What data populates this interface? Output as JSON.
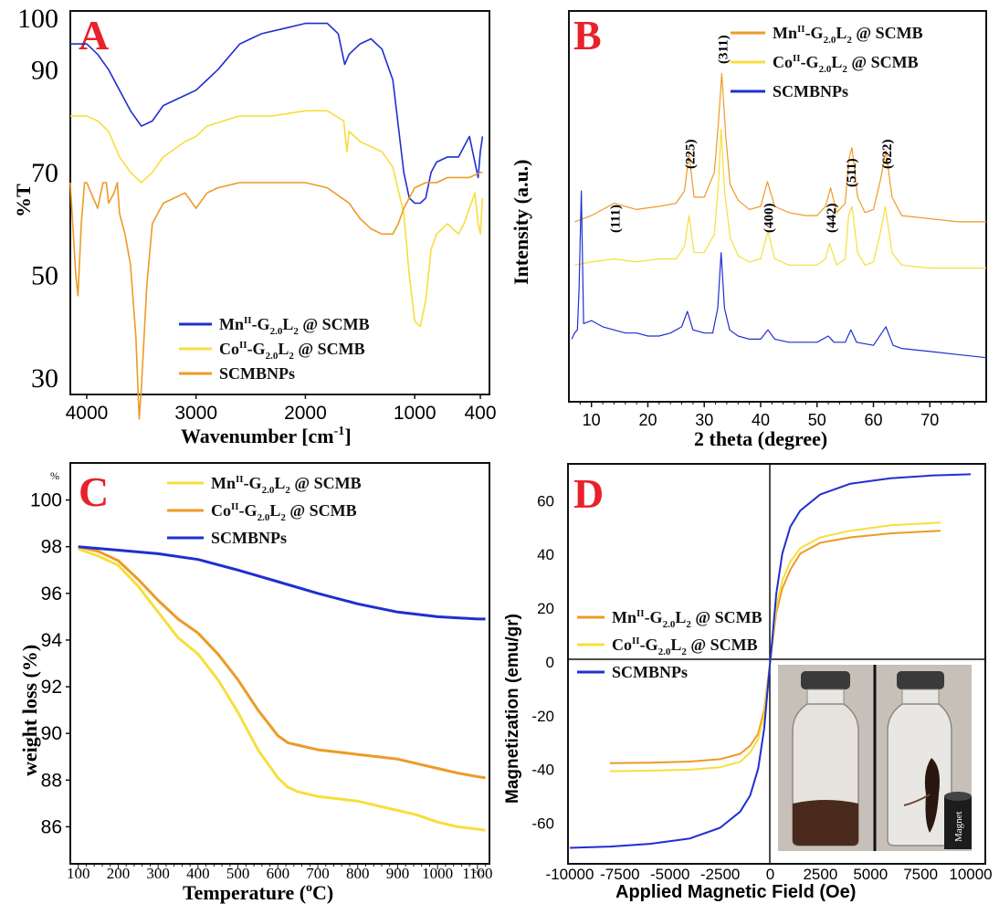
{
  "colors": {
    "blue": "#1f2fd0",
    "yellow": "#f7de3c",
    "orange": "#ee9a26",
    "frame": "#111111",
    "letter": "#e8212a"
  },
  "panels": {
    "A": {
      "letter": "A",
      "xlabel": "Wavenumber [cm-1]",
      "xlabel_main": "Wavenumber [cm",
      "xlabel_sup": "-1",
      "xlabel_end": "]",
      "ylabel": "%T",
      "xticks": [
        "4000",
        "3000",
        "2000",
        "1000",
        "400"
      ],
      "yticks": [
        "100",
        "90",
        "70",
        "50",
        "30"
      ],
      "legend": [
        {
          "pre": "Mn",
          "sup": "II",
          "mid": "-G",
          "sub": "2.0",
          "L": "L",
          "sub2": "2",
          "post": " @ SCMB",
          "color": "blue"
        },
        {
          "pre": "Co",
          "sup": "II",
          "mid": "-G",
          "sub": "2.0",
          "L": "L",
          "sub2": "2",
          "post": " @ SCMB",
          "color": "yellow"
        },
        {
          "pre": "SCMBNPs",
          "sup": "",
          "mid": "",
          "sub": "",
          "L": "",
          "sub2": "",
          "post": "",
          "color": "orange"
        }
      ]
    },
    "B": {
      "letter": "B",
      "xlabel": "2 theta (degree)",
      "ylabel": "Intensity (a.u.)",
      "xticks": [
        "10",
        "20",
        "30",
        "40",
        "50",
        "60",
        "70"
      ],
      "peaks": [
        "(111)",
        "(225)",
        "(311)",
        "(400)",
        "(442)",
        "(511)",
        "(622)"
      ],
      "legend": [
        {
          "pre": "Mn",
          "sup": "II",
          "mid": "-G",
          "sub": "2.0",
          "L": "L",
          "sub2": "2",
          "post": " @ SCMB",
          "color": "orange"
        },
        {
          "pre": "Co",
          "sup": "II",
          "mid": "-G",
          "sub": "2.0",
          "L": "L",
          "sub2": "2",
          "post": " @ SCMB",
          "color": "yellow"
        },
        {
          "pre": "SCMBNPs",
          "sup": "",
          "mid": "",
          "sub": "",
          "L": "",
          "sub2": "",
          "post": "",
          "color": "blue"
        }
      ]
    },
    "C": {
      "letter": "C",
      "xlabel": "Temperature (oC)",
      "xlabel_main": "Temperature (",
      "xlabel_sup": "o",
      "xlabel_end": "C)",
      "ylabel": "weight loss (%)",
      "yunit": "%",
      "xunit": "°C",
      "xticks": [
        "100",
        "200",
        "300",
        "400",
        "500",
        "600",
        "700",
        "800",
        "900",
        "1000",
        "1100"
      ],
      "yticks": [
        "100",
        "98",
        "96",
        "94",
        "92",
        "90",
        "88",
        "86"
      ],
      "legend": [
        {
          "pre": "Mn",
          "sup": "II",
          "mid": "-G",
          "sub": "2.0",
          "L": "L",
          "sub2": "2",
          "post": " @ SCMB",
          "color": "yellow"
        },
        {
          "pre": "Co",
          "sup": "II",
          "mid": "-G",
          "sub": "2.0",
          "L": "L",
          "sub2": "2",
          "post": " @ SCMB",
          "color": "orange"
        },
        {
          "pre": "SCMBNPs",
          "sup": "",
          "mid": "",
          "sub": "",
          "L": "",
          "sub2": "",
          "post": "",
          "color": "blue"
        }
      ]
    },
    "D": {
      "letter": "D",
      "xlabel": "Applied Magnetic Field (Oe)",
      "ylabel": "Magnetization (emu/gr)",
      "xticks": [
        "-10000",
        "-7500",
        "-5000",
        "-2500",
        "0",
        "2500",
        "5000",
        "7500",
        "10000"
      ],
      "yticks": [
        "60",
        "40",
        "20",
        "0",
        "-20",
        "-40",
        "-60"
      ],
      "inset_label": "Magnet",
      "legend": [
        {
          "pre": "Mn",
          "sup": "II",
          "mid": "-G",
          "sub": "2.0",
          "L": "L",
          "sub2": "2",
          "post": " @ SCMB",
          "color": "orange"
        },
        {
          "pre": "Co",
          "sup": "II",
          "mid": "-G",
          "sub": "2.0",
          "L": "L",
          "sub2": "2",
          "post": " @ SCMB",
          "color": "yellow"
        },
        {
          "pre": "SCMBNPs",
          "sup": "",
          "mid": "",
          "sub": "",
          "L": "",
          "sub2": "",
          "post": "",
          "color": "blue"
        }
      ]
    }
  },
  "chart_data": [
    {
      "type": "line",
      "panel": "A",
      "xlabel": "Wavenumber [cm-1]",
      "ylabel": "%T",
      "xlim": [
        4150,
        300
      ],
      "ylim": [
        20,
        100
      ],
      "series": [
        {
          "name": "Mn-G2.0L2 @ SCMB",
          "color": "blue",
          "x": [
            4150,
            4000,
            3900,
            3800,
            3700,
            3600,
            3500,
            3400,
            3300,
            3100,
            3000,
            2900,
            2800,
            2600,
            2400,
            2200,
            2000,
            1800,
            1700,
            1640,
            1600,
            1500,
            1400,
            1300,
            1200,
            1100,
            1050,
            1000,
            950,
            900,
            850,
            800,
            700,
            600,
            550,
            500,
            450,
            420,
            400,
            380
          ],
          "y": [
            95,
            95,
            93,
            90,
            86,
            82,
            79,
            80,
            83,
            85,
            86,
            88,
            90,
            95,
            97,
            98,
            99,
            99,
            97,
            91,
            93,
            95,
            96,
            94,
            88,
            70,
            65,
            64,
            64,
            65,
            70,
            72,
            73,
            73,
            75,
            77,
            72,
            69,
            74,
            77
          ]
        },
        {
          "name": "Co-G2.0L2 @ SCMB",
          "color": "yellow",
          "x": [
            4150,
            4000,
            3900,
            3800,
            3700,
            3600,
            3500,
            3400,
            3300,
            3100,
            3000,
            2900,
            2600,
            2300,
            2000,
            1800,
            1650,
            1620,
            1600,
            1500,
            1400,
            1300,
            1200,
            1100,
            1050,
            1000,
            950,
            900,
            850,
            800,
            700,
            600,
            550,
            500,
            450,
            420,
            400,
            380
          ],
          "y": [
            81,
            81,
            80,
            78,
            73,
            70,
            68,
            70,
            73,
            76,
            77,
            79,
            81,
            81,
            82,
            82,
            80,
            74,
            78,
            76,
            75,
            74,
            71,
            62,
            50,
            41,
            40,
            45,
            55,
            58,
            60,
            58,
            60,
            63,
            66,
            60,
            58,
            65
          ]
        },
        {
          "name": "SCMBNPs",
          "color": "orange",
          "x": [
            4150,
            4100,
            4080,
            4050,
            4020,
            4000,
            3900,
            3850,
            3820,
            3800,
            3750,
            3720,
            3700,
            3650,
            3600,
            3550,
            3520,
            3500,
            3450,
            3400,
            3300,
            3200,
            3100,
            3000,
            2900,
            2800,
            2600,
            2400,
            2200,
            2000,
            1800,
            1600,
            1500,
            1400,
            1300,
            1200,
            1150,
            1100,
            1000,
            900,
            800,
            700,
            600,
            500,
            400,
            380
          ],
          "y": [
            68,
            50,
            46,
            60,
            68,
            68,
            63,
            68,
            68,
            64,
            66,
            68,
            62,
            58,
            52,
            38,
            22,
            28,
            48,
            60,
            64,
            65,
            66,
            63,
            66,
            67,
            68,
            68,
            68,
            68,
            67,
            64,
            61,
            59,
            58,
            58,
            60,
            63,
            67,
            68,
            68,
            69,
            69,
            69,
            70,
            70
          ]
        }
      ]
    },
    {
      "type": "line",
      "panel": "B",
      "xlabel": "2 theta (degree)",
      "ylabel": "Intensity (a.u.)",
      "xlim": [
        6,
        80
      ],
      "ylim": [
        0,
        110
      ],
      "series": [
        {
          "name": "Mn-G2.0L2 @ SCMB",
          "color": "orange",
          "x": [
            7,
            10,
            14,
            18,
            22,
            25,
            26.5,
            27.3,
            28.2,
            30,
            31.8,
            32.5,
            33.1,
            33.8,
            34.6,
            36,
            38,
            40,
            41.2,
            42.5,
            45,
            48,
            50,
            51.5,
            52.4,
            53.5,
            55,
            55.6,
            56.2,
            57.2,
            58.5,
            60,
            61.3,
            62.2,
            63.3,
            65,
            70,
            75,
            80
          ],
          "y": [
            50,
            52,
            56,
            54,
            55,
            56,
            60,
            72,
            58,
            58,
            66,
            82,
            98,
            78,
            62,
            57,
            54,
            55,
            63,
            55,
            53,
            52,
            52,
            55,
            61,
            53,
            56,
            70,
            74,
            58,
            53,
            54,
            64,
            73,
            58,
            52,
            51,
            50,
            50
          ]
        },
        {
          "name": "Co-G2.0L2 @ SCMB",
          "color": "yellow",
          "x": [
            7,
            10,
            14,
            18,
            22,
            25,
            26.5,
            27.3,
            28.2,
            30,
            31.8,
            32.5,
            33,
            33.6,
            34.6,
            36,
            38,
            40,
            41.3,
            42.5,
            45,
            48,
            50,
            51.5,
            52.2,
            53.5,
            55,
            55.6,
            56.2,
            57.2,
            58.5,
            60,
            61.3,
            62.1,
            63.3,
            65,
            70,
            75,
            80
          ],
          "y": [
            36,
            37,
            38,
            37,
            38,
            38,
            42,
            52,
            40,
            40,
            46,
            62,
            80,
            60,
            45,
            39,
            37,
            38,
            47,
            38,
            36,
            36,
            36,
            38,
            43,
            36,
            38,
            52,
            55,
            40,
            36,
            37,
            47,
            55,
            40,
            36,
            35,
            35,
            35
          ]
        },
        {
          "name": "SCMBNPs",
          "color": "blue",
          "x": [
            6.5,
            7,
            7.5,
            7.8,
            8.2,
            8.6,
            10,
            12,
            14,
            16,
            18,
            20,
            22,
            24,
            26,
            27,
            28,
            30,
            31.5,
            32.4,
            33,
            33.6,
            34.5,
            36,
            38,
            40,
            41.3,
            42.5,
            45,
            48,
            50,
            52,
            53,
            55,
            56,
            57,
            60,
            62.2,
            63.5,
            65,
            70,
            75,
            80
          ],
          "y": [
            12,
            14,
            15,
            28,
            60,
            17,
            18,
            16,
            15,
            14,
            14,
            13,
            13,
            14,
            16,
            21,
            15,
            14,
            14,
            22,
            40,
            22,
            15,
            13,
            12,
            12,
            15,
            12,
            11,
            11,
            11,
            13,
            11,
            11,
            15,
            11,
            10,
            16,
            10,
            9,
            8,
            7,
            6
          ]
        }
      ]
    },
    {
      "type": "line",
      "panel": "C",
      "xlabel": "Temperature (oC)",
      "ylabel": "weight loss (%)",
      "xlim": [
        80,
        1130
      ],
      "ylim": [
        85,
        101
      ],
      "series": [
        {
          "name": "Mn-G2.0L2 @ SCMB",
          "color": "yellow",
          "x": [
            100,
            150,
            200,
            250,
            300,
            350,
            400,
            450,
            500,
            550,
            600,
            625,
            650,
            700,
            750,
            800,
            850,
            900,
            950,
            1000,
            1050,
            1100,
            1120
          ],
          "y": [
            97.9,
            97.6,
            97.2,
            96.3,
            95.2,
            94.1,
            93.4,
            92.3,
            90.9,
            89.3,
            88.1,
            87.7,
            87.5,
            87.3,
            87.2,
            87.1,
            86.9,
            86.7,
            86.5,
            86.2,
            86.0,
            85.9,
            85.85
          ]
        },
        {
          "name": "Co-G2.0L2 @ SCMB",
          "color": "orange",
          "x": [
            100,
            150,
            200,
            250,
            300,
            350,
            400,
            450,
            500,
            550,
            600,
            625,
            650,
            700,
            750,
            800,
            850,
            900,
            950,
            1000,
            1050,
            1100,
            1120
          ],
          "y": [
            98.0,
            97.8,
            97.4,
            96.6,
            95.7,
            94.9,
            94.3,
            93.4,
            92.3,
            91.0,
            89.9,
            89.6,
            89.5,
            89.3,
            89.2,
            89.1,
            89.0,
            88.9,
            88.7,
            88.5,
            88.3,
            88.15,
            88.1
          ]
        },
        {
          "name": "SCMBNPs",
          "color": "blue",
          "x": [
            100,
            200,
            300,
            400,
            500,
            600,
            700,
            800,
            900,
            1000,
            1100,
            1120
          ],
          "y": [
            98.0,
            97.85,
            97.7,
            97.45,
            97.0,
            96.5,
            96.0,
            95.55,
            95.2,
            95.0,
            94.9,
            94.9
          ]
        }
      ]
    },
    {
      "type": "line",
      "panel": "D",
      "xlabel": "Applied Magnetic Field (Oe)",
      "ylabel": "Magnetization (emu/gr)",
      "xlim": [
        -10000,
        10000
      ],
      "ylim": [
        -70,
        72
      ],
      "series": [
        {
          "name": "Mn-G2.0L2 @ SCMB",
          "color": "orange",
          "x": [
            -8000,
            -6000,
            -4000,
            -2500,
            -1500,
            -1000,
            -600,
            -300,
            -100,
            0,
            100,
            300,
            600,
            1000,
            1500,
            2500,
            4000,
            6000,
            8500
          ],
          "y": [
            -38,
            -37.8,
            -37.4,
            -36.5,
            -34.5,
            -31.5,
            -27,
            -18,
            -6,
            0,
            6,
            18,
            27,
            34,
            40,
            44,
            46,
            47.5,
            48.5
          ]
        },
        {
          "name": "Co-G2.0L2 @ SCMB",
          "color": "yellow",
          "x": [
            -8000,
            -6000,
            -4000,
            -2500,
            -1500,
            -1000,
            -600,
            -300,
            -100,
            0,
            100,
            300,
            600,
            1000,
            1500,
            2500,
            4000,
            6000,
            8500
          ],
          "y": [
            -41,
            -40.8,
            -40.4,
            -39.5,
            -37.5,
            -34,
            -29,
            -20,
            -7,
            0,
            7,
            20,
            30,
            37,
            42,
            46,
            48.5,
            50.5,
            51.5
          ]
        },
        {
          "name": "SCMBNPs",
          "color": "blue",
          "x": [
            -10000,
            -8000,
            -6000,
            -4000,
            -2500,
            -1500,
            -1000,
            -600,
            -300,
            -100,
            0,
            100,
            300,
            600,
            1000,
            1500,
            2500,
            4000,
            6000,
            8000,
            10000
          ],
          "y": [
            -69.5,
            -69,
            -68,
            -66,
            -62,
            -56,
            -50,
            -40,
            -25,
            -8,
            0,
            8,
            25,
            40,
            50,
            56,
            62,
            66,
            68,
            69,
            69.5
          ]
        }
      ]
    }
  ]
}
